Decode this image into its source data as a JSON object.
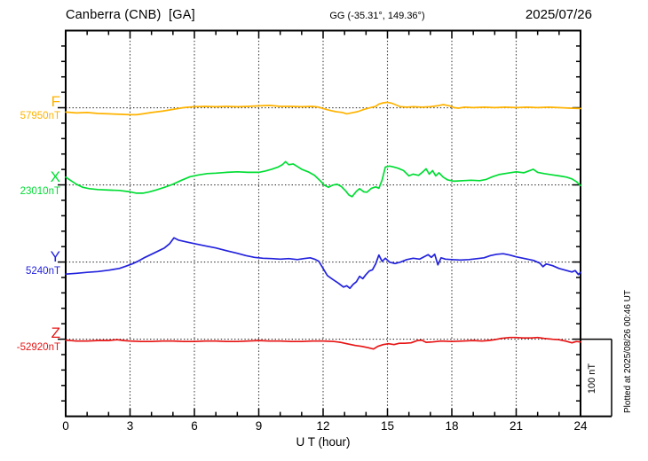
{
  "header": {
    "station_title": "Canberra (CNB)  [GA]",
    "geographic_coords": "GG (-35.31°, 149.36°)",
    "date": "2025/07/26"
  },
  "footer": {
    "plotted_at": "Plotted at 2025/08/26 00:46 UT"
  },
  "colors": {
    "frame": "#000000",
    "grid": "#333333",
    "background": "#ffffff",
    "F": "#ffb300",
    "X": "#00dd33",
    "Y": "#2222dd",
    "Z": "#e81414"
  },
  "chart_data": {
    "type": "line",
    "title": "Canberra (CNB)  [GA]",
    "xlabel": "U T (hour)",
    "xlim": [
      0,
      24
    ],
    "xticks_major": [
      0,
      3,
      6,
      9,
      12,
      15,
      18,
      21,
      24
    ],
    "xtick_minor_step": 1,
    "grid_hours": [
      3,
      6,
      9,
      12,
      15,
      18,
      21
    ],
    "grid_style": "dotted",
    "y_minor_divisions": 25,
    "y_major_every": 5,
    "nT_per_minor_division": 20,
    "scale_bar": {
      "label": "100 nT",
      "nT": 100
    },
    "series": [
      {
        "name": "F",
        "base_label": "57950nT",
        "base_nT": 57950,
        "color": "#ffb300",
        "baseline_division": 20,
        "points_hour_offsetnT": [
          [
            0,
            -5.6
          ],
          [
            0.5,
            -6.8
          ],
          [
            1,
            -6.2
          ],
          [
            1.5,
            -7.4
          ],
          [
            2,
            -7.9
          ],
          [
            2.5,
            -8.5
          ],
          [
            3,
            -9.1
          ],
          [
            3.3,
            -9.1
          ],
          [
            3.6,
            -7.9
          ],
          [
            4,
            -6.2
          ],
          [
            4.5,
            -4.5
          ],
          [
            5,
            -2.2
          ],
          [
            5.5,
            0.1
          ],
          [
            6,
            1.3
          ],
          [
            6.5,
            1.8
          ],
          [
            7,
            1.3
          ],
          [
            7.5,
            1.8
          ],
          [
            8,
            1.3
          ],
          [
            8.5,
            1.8
          ],
          [
            9,
            2.4
          ],
          [
            9.5,
            3
          ],
          [
            10,
            1.8
          ],
          [
            10.5,
            1.8
          ],
          [
            11,
            1.3
          ],
          [
            11.5,
            1.8
          ],
          [
            11.8,
            0.7
          ],
          [
            12,
            -1
          ],
          [
            12.3,
            -3.3
          ],
          [
            12.6,
            -5.1
          ],
          [
            12.9,
            -6.2
          ],
          [
            13.1,
            -7.9
          ],
          [
            13.3,
            -6.8
          ],
          [
            13.6,
            -5.1
          ],
          [
            13.9,
            -2.2
          ],
          [
            14.2,
            0.1
          ],
          [
            14.45,
            1.8
          ],
          [
            14.6,
            4.7
          ],
          [
            14.8,
            6.4
          ],
          [
            15,
            7
          ],
          [
            15.2,
            5.9
          ],
          [
            15.4,
            3.6
          ],
          [
            15.6,
            1.3
          ],
          [
            15.9,
            0.7
          ],
          [
            16.2,
            1.3
          ],
          [
            16.6,
            0.7
          ],
          [
            17,
            1.3
          ],
          [
            17.3,
            2.4
          ],
          [
            17.6,
            4.1
          ],
          [
            17.9,
            2.4
          ],
          [
            18.1,
            0.1
          ],
          [
            18.3,
            -0.5
          ],
          [
            18.6,
            0.7
          ],
          [
            19,
            0.1
          ],
          [
            19.5,
            0.7
          ],
          [
            20,
            0.1
          ],
          [
            20.5,
            0.7
          ],
          [
            21,
            0.1
          ],
          [
            21.5,
            0.7
          ],
          [
            22,
            0.1
          ],
          [
            22.5,
            0.7
          ],
          [
            23,
            0.1
          ],
          [
            23.5,
            -0.5
          ],
          [
            24,
            -1
          ]
        ]
      },
      {
        "name": "X",
        "base_label": "23010nT",
        "base_nT": 23010,
        "color": "#00dd33",
        "baseline_division": 15,
        "points_hour_offsetnT": [
          [
            0,
            10
          ],
          [
            0.25,
            5.4
          ],
          [
            0.5,
            0.8
          ],
          [
            0.8,
            -3.2
          ],
          [
            1.1,
            -4.9
          ],
          [
            1.5,
            -6.1
          ],
          [
            2,
            -6.7
          ],
          [
            2.5,
            -7.2
          ],
          [
            3,
            -9
          ],
          [
            3.3,
            -10.7
          ],
          [
            3.6,
            -10.7
          ],
          [
            3.9,
            -9
          ],
          [
            4.2,
            -6.7
          ],
          [
            4.6,
            -3.2
          ],
          [
            5,
            0.8
          ],
          [
            5.4,
            6
          ],
          [
            5.8,
            10.6
          ],
          [
            6.2,
            12.9
          ],
          [
            6.6,
            14.6
          ],
          [
            7,
            15.2
          ],
          [
            7.5,
            16.3
          ],
          [
            8,
            16.9
          ],
          [
            8.5,
            16.3
          ],
          [
            9,
            16.3
          ],
          [
            9.3,
            18
          ],
          [
            9.6,
            20.3
          ],
          [
            9.9,
            23.2
          ],
          [
            10.1,
            26.1
          ],
          [
            10.25,
            30.1
          ],
          [
            10.4,
            26.1
          ],
          [
            10.6,
            27.2
          ],
          [
            10.8,
            23.8
          ],
          [
            11,
            20.3
          ],
          [
            11.3,
            16.9
          ],
          [
            11.6,
            12.3
          ],
          [
            11.9,
            4.3
          ],
          [
            12.05,
            -0.3
          ],
          [
            12.25,
            -3.2
          ],
          [
            12.45,
            -0.3
          ],
          [
            12.65,
            0.8
          ],
          [
            12.85,
            -2.1
          ],
          [
            13.05,
            -7.8
          ],
          [
            13.2,
            -13
          ],
          [
            13.35,
            -15.3
          ],
          [
            13.55,
            -8.4
          ],
          [
            13.7,
            -4.9
          ],
          [
            13.9,
            -9
          ],
          [
            14.05,
            -9.5
          ],
          [
            14.25,
            -4.4
          ],
          [
            14.45,
            -2.6
          ],
          [
            14.6,
            -4.4
          ],
          [
            14.75,
            6.5
          ],
          [
            14.9,
            23.2
          ],
          [
            15.1,
            24.4
          ],
          [
            15.3,
            23.2
          ],
          [
            15.5,
            21.5
          ],
          [
            15.75,
            18.6
          ],
          [
            16,
            11.7
          ],
          [
            16.2,
            14
          ],
          [
            16.45,
            12.3
          ],
          [
            16.65,
            16.9
          ],
          [
            16.8,
            20.9
          ],
          [
            16.95,
            14
          ],
          [
            17.1,
            18.6
          ],
          [
            17.25,
            11.7
          ],
          [
            17.4,
            15.7
          ],
          [
            17.6,
            10
          ],
          [
            17.8,
            6.5
          ],
          [
            18.1,
            4.8
          ],
          [
            18.5,
            5.4
          ],
          [
            18.9,
            6
          ],
          [
            19.3,
            5.4
          ],
          [
            19.6,
            7.1
          ],
          [
            19.9,
            10.6
          ],
          [
            20.2,
            13.4
          ],
          [
            20.6,
            15.2
          ],
          [
            21,
            16.9
          ],
          [
            21.35,
            15.7
          ],
          [
            21.8,
            20.3
          ],
          [
            22,
            16.3
          ],
          [
            22.3,
            14.6
          ],
          [
            22.7,
            12.9
          ],
          [
            23,
            11.7
          ],
          [
            23.35,
            10
          ],
          [
            23.6,
            7.7
          ],
          [
            23.8,
            4.3
          ],
          [
            24,
            -0.9
          ]
        ]
      },
      {
        "name": "Y",
        "base_label": "5240nT",
        "base_nT": 5240,
        "color": "#2222dd",
        "baseline_division": 10,
        "points_hour_offsetnT": [
          [
            0,
            -15.7
          ],
          [
            0.5,
            -14.6
          ],
          [
            1,
            -13.4
          ],
          [
            1.5,
            -12.3
          ],
          [
            2,
            -10.6
          ],
          [
            2.5,
            -8.3
          ],
          [
            2.8,
            -5.4
          ],
          [
            3.1,
            -2.5
          ],
          [
            3.4,
            1.5
          ],
          [
            3.7,
            6.1
          ],
          [
            4,
            10.1
          ],
          [
            4.3,
            14.1
          ],
          [
            4.6,
            18.2
          ],
          [
            4.85,
            23.9
          ],
          [
            5.05,
            31.4
          ],
          [
            5.25,
            28.5
          ],
          [
            5.5,
            26.8
          ],
          [
            5.8,
            25
          ],
          [
            6.1,
            23.3
          ],
          [
            6.5,
            21
          ],
          [
            7,
            18.2
          ],
          [
            7.5,
            14.7
          ],
          [
            8,
            11.3
          ],
          [
            8.4,
            8.4
          ],
          [
            8.8,
            6.1
          ],
          [
            9.2,
            4.9
          ],
          [
            9.6,
            4.4
          ],
          [
            10,
            3.8
          ],
          [
            10.4,
            4.4
          ],
          [
            10.8,
            3.2
          ],
          [
            11.1,
            4.4
          ],
          [
            11.4,
            5.5
          ],
          [
            11.6,
            3.8
          ],
          [
            11.8,
            0.9
          ],
          [
            12,
            -8.3
          ],
          [
            12.2,
            -17.5
          ],
          [
            12.45,
            -22.6
          ],
          [
            12.7,
            -27.2
          ],
          [
            12.95,
            -32.4
          ],
          [
            13.1,
            -30.7
          ],
          [
            13.25,
            -34.1
          ],
          [
            13.4,
            -29
          ],
          [
            13.55,
            -25.5
          ],
          [
            13.7,
            -18.6
          ],
          [
            13.85,
            -21.5
          ],
          [
            14,
            -16.3
          ],
          [
            14.15,
            -11.7
          ],
          [
            14.3,
            -10
          ],
          [
            14.45,
            -2.5
          ],
          [
            14.6,
            9
          ],
          [
            14.75,
            0.9
          ],
          [
            14.9,
            4.9
          ],
          [
            15.1,
            -0.2
          ],
          [
            15.35,
            -2
          ],
          [
            15.6,
            -0.2
          ],
          [
            15.9,
            3.2
          ],
          [
            16.2,
            4.9
          ],
          [
            16.5,
            3.8
          ],
          [
            16.7,
            6.7
          ],
          [
            16.9,
            9.5
          ],
          [
            17.05,
            6.1
          ],
          [
            17.2,
            10.1
          ],
          [
            17.35,
            -3.7
          ],
          [
            17.5,
            5.5
          ],
          [
            17.7,
            3.8
          ],
          [
            18,
            3.2
          ],
          [
            18.4,
            2.6
          ],
          [
            18.8,
            3.2
          ],
          [
            19.2,
            4.4
          ],
          [
            19.5,
            5.5
          ],
          [
            19.8,
            8.4
          ],
          [
            20.1,
            10.1
          ],
          [
            20.4,
            10.7
          ],
          [
            20.7,
            9
          ],
          [
            21,
            6.7
          ],
          [
            21.4,
            4.4
          ],
          [
            21.8,
            2.1
          ],
          [
            22.1,
            -1.4
          ],
          [
            22.25,
            -6
          ],
          [
            22.4,
            -2.5
          ],
          [
            22.7,
            -4.8
          ],
          [
            23,
            -8.3
          ],
          [
            23.3,
            -10.6
          ],
          [
            23.6,
            -12.9
          ],
          [
            23.75,
            -11.1
          ],
          [
            23.9,
            -16.3
          ],
          [
            24,
            -13.4
          ]
        ]
      },
      {
        "name": "Z",
        "base_label": "-52920nT",
        "base_nT": -52920,
        "color": "#e81414",
        "baseline_division": 5,
        "points_hour_offsetnT": [
          [
            0,
            -1.3
          ],
          [
            0.5,
            -2.4
          ],
          [
            1,
            -2.4
          ],
          [
            1.5,
            -1.8
          ],
          [
            2,
            -1.8
          ],
          [
            2.4,
            -0.7
          ],
          [
            2.7,
            -1.8
          ],
          [
            3,
            -2.4
          ],
          [
            3.5,
            -3
          ],
          [
            4,
            -3
          ],
          [
            4.5,
            -2.4
          ],
          [
            5,
            -2.4
          ],
          [
            5.5,
            -3
          ],
          [
            6,
            -3
          ],
          [
            6.5,
            -2.4
          ],
          [
            7,
            -2.4
          ],
          [
            7.5,
            -3
          ],
          [
            8,
            -3
          ],
          [
            8.5,
            -2.4
          ],
          [
            9,
            -1.8
          ],
          [
            9.5,
            -2.4
          ],
          [
            10,
            -2.4
          ],
          [
            10.5,
            -3
          ],
          [
            11,
            -3
          ],
          [
            11.5,
            -2.4
          ],
          [
            12,
            -2.4
          ],
          [
            12.5,
            -3
          ],
          [
            12.8,
            -4.1
          ],
          [
            13.1,
            -5.9
          ],
          [
            13.5,
            -8.2
          ],
          [
            13.8,
            -9.3
          ],
          [
            14.1,
            -11
          ],
          [
            14.35,
            -12.8
          ],
          [
            14.55,
            -9.3
          ],
          [
            14.8,
            -7
          ],
          [
            15.05,
            -5.9
          ],
          [
            15.3,
            -7
          ],
          [
            15.55,
            -5.3
          ],
          [
            15.8,
            -5.3
          ],
          [
            16.1,
            -4.7
          ],
          [
            16.4,
            -1.8
          ],
          [
            16.6,
            -1.3
          ],
          [
            16.8,
            -4.1
          ],
          [
            17.1,
            -3.6
          ],
          [
            17.5,
            -2.4
          ],
          [
            18,
            -3
          ],
          [
            18.5,
            -2.4
          ],
          [
            19,
            -1.8
          ],
          [
            19.4,
            -2.4
          ],
          [
            19.7,
            -1.8
          ],
          [
            20,
            -0.7
          ],
          [
            20.3,
            1
          ],
          [
            20.7,
            2.2
          ],
          [
            21,
            2.2
          ],
          [
            21.3,
            1.6
          ],
          [
            21.7,
            1.6
          ],
          [
            22,
            2.2
          ],
          [
            22.3,
            1
          ],
          [
            22.7,
            -0.1
          ],
          [
            23,
            -0.7
          ],
          [
            23.3,
            -2.4
          ],
          [
            23.6,
            -4.7
          ],
          [
            23.8,
            -3
          ],
          [
            24,
            -3.6
          ]
        ]
      }
    ]
  }
}
